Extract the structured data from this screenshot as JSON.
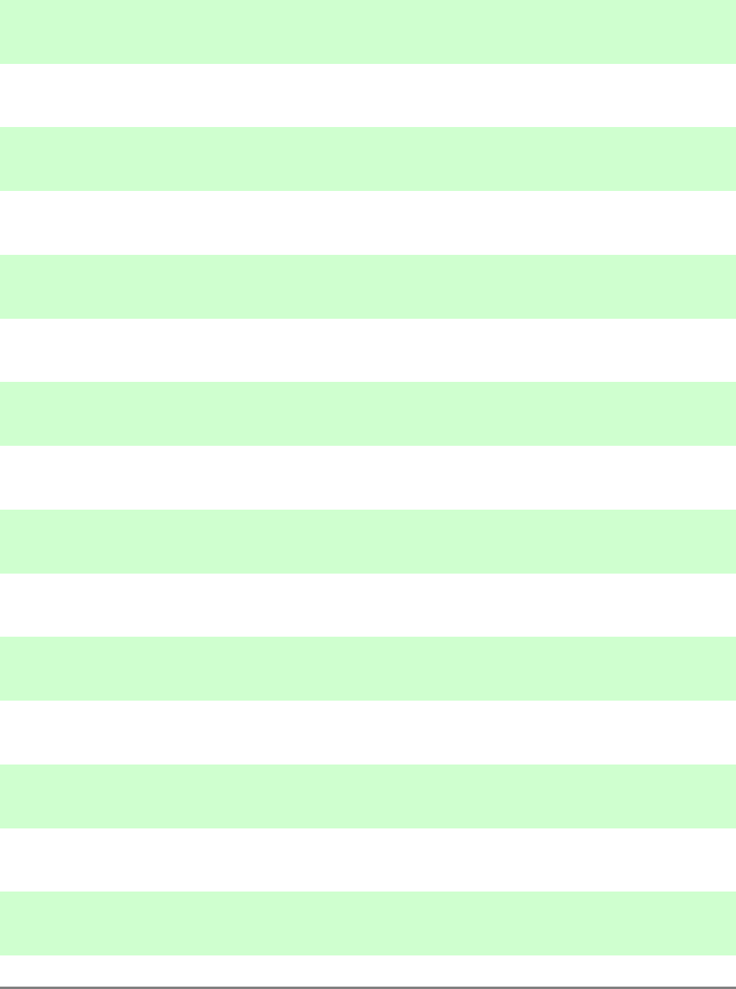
{
  "stripes": {
    "count": 8,
    "stripe_color": "#cfffcf",
    "gap_color": "#ffffff"
  },
  "bottom_rule": {
    "color": "#808080"
  }
}
